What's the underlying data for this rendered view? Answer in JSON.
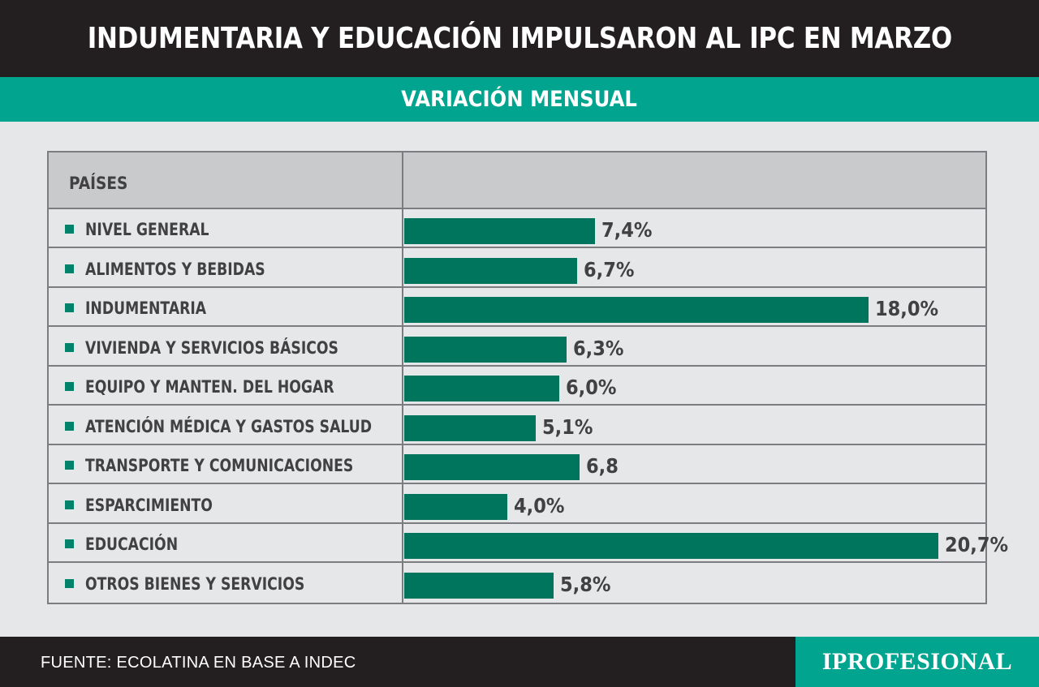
{
  "title": "INDUMENTARIA Y EDUCACIÓN IMPULSARON AL IPC EN MARZO",
  "subtitle": "VARIACIÓN MENSUAL",
  "table": {
    "header_label": "PAÍSES"
  },
  "footer": {
    "source": "FUENTE: ECOLATINA EN BASE A INDEC",
    "brand": "IPROFESIONAL"
  },
  "colors": {
    "header_bg": "#231f20",
    "accent": "#00a48f",
    "bar": "#00755e",
    "background": "#e6e7e8"
  },
  "chart_data": {
    "type": "bar",
    "orientation": "horizontal",
    "categories": [
      "NIVEL GENERAL",
      "ALIMENTOS Y BEBIDAS",
      "INDUMENTARIA",
      "VIVIENDA Y SERVICIOS BÁSICOS",
      "EQUIPO Y MANTEN. DEL HOGAR",
      "ATENCIÓN MÉDICA Y GASTOS SALUD",
      "TRANSPORTE Y COMUNICACIONES",
      "ESPARCIMIENTO",
      "EDUCACIÓN",
      "OTROS BIENES Y SERVICIOS"
    ],
    "values": [
      7.4,
      6.7,
      18.0,
      6.3,
      6.0,
      5.1,
      6.8,
      4.0,
      20.7,
      5.8
    ],
    "value_labels": [
      "7,4%",
      "6,7%",
      "18,0%",
      "6,3%",
      "6,0%",
      "5,1%",
      "6,8",
      "4,0%",
      "20,7%",
      "5,8%"
    ],
    "unit": "%",
    "xlim": [
      0,
      21.4
    ]
  }
}
